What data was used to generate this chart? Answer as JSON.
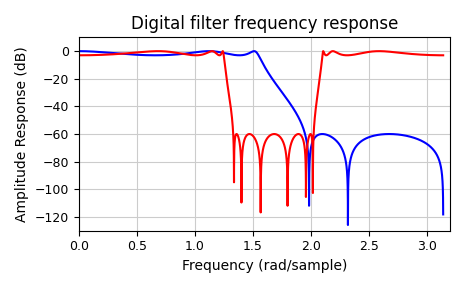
{
  "title": "Digital filter frequency response",
  "xlabel": "Frequency (rad/sample)",
  "ylabel": "Amplitude Response (dB)",
  "ylim": [
    -130,
    10
  ],
  "xlim": [
    0.0,
    3.2
  ],
  "yticks": [
    0,
    -20,
    -40,
    -60,
    -80,
    -100,
    -120
  ],
  "xticks": [
    0.0,
    0.5,
    1.0,
    1.5,
    2.0,
    2.5,
    3.0
  ],
  "blue_color": "#0000ff",
  "red_color": "#ff0000",
  "bg_color": "#ffffff",
  "grid_color": "#cccccc",
  "title_fontsize": 12,
  "label_fontsize": 10,
  "tick_fontsize": 9,
  "linewidth": 1.5
}
